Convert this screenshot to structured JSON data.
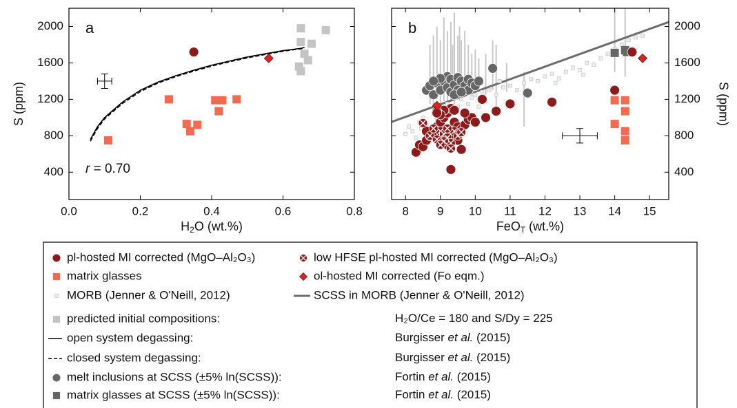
{
  "chart_data": [
    {
      "type": "scatter",
      "panel_label": "a",
      "xlabel": {
        "main": "H",
        "sub": "2",
        "rest": "O (wt.%)"
      },
      "ylabel": "S (ppm)",
      "yaxis_side": "left",
      "annotation": {
        "var": "r",
        "text": "= 0.70"
      },
      "xlim": [
        0,
        0.8
      ],
      "ylim": [
        100,
        2200
      ],
      "xticks": [
        {
          "value": 0,
          "label": "0.0"
        },
        {
          "value": 0.2,
          "label": "0.2"
        },
        {
          "value": 0.4,
          "label": "0.4"
        },
        {
          "value": 0.6,
          "label": "0.6"
        },
        {
          "value": 0.8,
          "label": "0.8"
        }
      ],
      "yticks": [
        400,
        800,
        1200,
        1600,
        2000
      ],
      "series": [
        {
          "kind": "line",
          "color": "#000000",
          "dash": false,
          "x": [
            0.06,
            0.08,
            0.1,
            0.15,
            0.2,
            0.25,
            0.3,
            0.35,
            0.4,
            0.45,
            0.5,
            0.55,
            0.6,
            0.65,
            0.66
          ],
          "y": [
            760,
            900,
            1000,
            1170,
            1300,
            1390,
            1460,
            1520,
            1575,
            1620,
            1665,
            1700,
            1735,
            1760,
            1770
          ]
        },
        {
          "kind": "line",
          "color": "#000000",
          "dash": true,
          "x": [
            0.06,
            0.08,
            0.1,
            0.15,
            0.2,
            0.25,
            0.3,
            0.35,
            0.4,
            0.45,
            0.5,
            0.55,
            0.6,
            0.65,
            0.66
          ],
          "y": [
            740,
            880,
            985,
            1155,
            1285,
            1380,
            1450,
            1510,
            1565,
            1612,
            1655,
            1692,
            1728,
            1755,
            1765
          ]
        },
        {
          "kind": "points",
          "marker": "square",
          "color": "#c4c4c4",
          "x": [
            0.65,
            0.72,
            0.68,
            0.65,
            0.66,
            0.67,
            0.645,
            0.65
          ],
          "y": [
            1980,
            1960,
            1810,
            1830,
            1700,
            1630,
            1560,
            1510
          ]
        },
        {
          "kind": "points",
          "marker": "square",
          "color": "#f26a4f",
          "x": [
            0.11,
            0.28,
            0.33,
            0.34,
            0.36,
            0.41,
            0.42,
            0.43,
            0.47
          ],
          "y": [
            750,
            1200,
            930,
            850,
            920,
            1190,
            1070,
            1190,
            1200
          ]
        },
        {
          "kind": "points",
          "marker": "circle",
          "color": "#8c1c1c",
          "x": [
            0.35
          ],
          "y": [
            1720
          ]
        },
        {
          "kind": "points",
          "marker": "diamond",
          "color": "#e32020",
          "x": [
            0.56
          ],
          "y": [
            1650
          ]
        },
        {
          "kind": "errorbar",
          "color": "#000000",
          "x": [
            0.1
          ],
          "y": [
            1400
          ],
          "xerr": [
            0.02
          ],
          "yerr": [
            80
          ]
        }
      ]
    },
    {
      "type": "scatter",
      "panel_label": "b",
      "xlabel": {
        "main": "FeO",
        "sub": "T",
        "rest": "(wt.%)"
      },
      "ylabel": "S (ppm)",
      "yaxis_side": "right",
      "xlim": [
        7.6,
        15.55
      ],
      "ylim": [
        100,
        2200
      ],
      "xticks": [
        8,
        9,
        10,
        11,
        12,
        13,
        14,
        15
      ],
      "yticks": [
        400,
        800,
        1200,
        1600,
        2000
      ],
      "series": [
        {
          "kind": "ranges",
          "color": "#c8c8c8",
          "x": [
            8.7,
            8.8,
            8.9,
            9.0,
            9.1,
            9.2,
            9.3,
            9.35,
            9.4,
            9.5,
            9.55,
            9.6,
            9.7,
            9.8,
            9.9,
            10.0,
            10.1,
            10.3,
            10.5,
            10.6,
            10.9,
            11.4,
            14.0,
            14.3
          ],
          "low": [
            1150,
            1100,
            1200,
            1150,
            1180,
            1120,
            1200,
            1250,
            1150,
            1200,
            1230,
            1180,
            1220,
            1250,
            1200,
            1260,
            1280,
            1250,
            1300,
            1050,
            1280,
            900,
            1500,
            1450
          ],
          "high": [
            1800,
            1900,
            2000,
            1850,
            2100,
            1950,
            2050,
            1800,
            2150,
            1900,
            2000,
            1850,
            1950,
            1800,
            1700,
            1750,
            1650,
            1700,
            1850,
            1800,
            1600,
            1500,
            2200,
            2200
          ]
        },
        {
          "kind": "points",
          "marker": "smallsquare",
          "color": "#c8c8c8",
          "x": [
            8.1,
            8.2,
            8.3,
            8.0,
            8.4,
            8.5,
            8.6,
            8.8,
            8.9,
            9.0,
            9.2,
            9.4,
            9.6,
            9.8,
            10.0,
            10.2,
            10.4,
            10.6,
            10.8,
            11.0,
            11.2,
            11.4,
            11.6,
            11.8,
            12.0,
            12.2,
            12.4,
            12.6,
            12.8,
            13.0,
            13.2,
            13.4,
            13.6,
            13.8,
            14.0,
            14.2,
            14.4,
            14.6,
            14.8,
            9.1,
            9.5,
            9.9,
            10.3,
            10.7,
            11.5,
            12.3,
            13.1,
            8.7,
            8.45,
            10.1
          ],
          "y": [
            900,
            850,
            780,
            820,
            950,
            1000,
            920,
            1050,
            980,
            1100,
            1150,
            1080,
            1200,
            1150,
            1250,
            1280,
            1300,
            1250,
            1330,
            1350,
            1300,
            1380,
            1420,
            1400,
            1450,
            1480,
            1430,
            1500,
            1550,
            1520,
            1600,
            1580,
            1650,
            1700,
            1750,
            1800,
            1850,
            1880,
            1900,
            1020,
            1120,
            1220,
            1180,
            1400,
            1260,
            1380,
            1470,
            870,
            880,
            1120
          ]
        },
        {
          "kind": "line",
          "color": "#6d6d6d",
          "dash": false,
          "width": 3,
          "x": [
            7.6,
            15.55
          ],
          "y": [
            952,
            2049
          ]
        },
        {
          "kind": "points",
          "marker": "circle",
          "color": "#666666",
          "x": [
            8.6,
            8.7,
            8.8,
            8.9,
            9.0,
            9.1,
            9.2,
            9.2,
            9.3,
            9.3,
            9.4,
            9.5,
            9.5,
            9.6,
            9.7,
            9.8,
            9.8,
            9.9,
            10.0,
            9.0,
            8.8,
            9.4,
            9.6,
            10.1,
            10.5,
            11.5
          ],
          "y": [
            1300,
            1350,
            1250,
            1380,
            1300,
            1400,
            1450,
            1330,
            1280,
            1420,
            1360,
            1440,
            1300,
            1400,
            1350,
            1420,
            1300,
            1380,
            1350,
            1430,
            1400,
            1250,
            1280,
            1400,
            1540,
            1270
          ]
        },
        {
          "kind": "points",
          "marker": "square",
          "color": "#666666",
          "x": [
            14.0,
            14.3,
            14.35
          ],
          "y": [
            1710,
            1740,
            1720
          ]
        },
        {
          "kind": "points",
          "marker": "circle",
          "color": "#8c1c1c",
          "x": [
            8.3,
            8.4,
            8.5,
            8.6,
            8.7,
            8.8,
            8.9,
            9.0,
            9.1,
            9.2,
            9.3,
            9.1,
            9.0,
            8.9,
            9.4,
            9.5,
            9.6,
            9.7,
            9.8,
            9.9,
            10.0,
            9.3,
            9.5,
            9.6,
            9.2,
            9.3,
            8.9,
            9.4,
            10.2,
            10.6,
            11.0,
            12.2,
            14.0,
            14.5,
            10.3,
            9.7,
            8.6
          ],
          "y": [
            620,
            700,
            680,
            750,
            800,
            850,
            900,
            950,
            1000,
            1050,
            1100,
            1080,
            1030,
            1070,
            950,
            900,
            870,
            920,
            980,
            1000,
            950,
            800,
            750,
            650,
            700,
            430,
            1050,
            1080,
            1200,
            1070,
            1150,
            1170,
            1300,
            1720,
            1000,
            1050,
            850
          ]
        },
        {
          "kind": "points",
          "marker": "xcircle",
          "color": "#8c1c1c",
          "x": [
            8.5,
            8.7,
            8.9,
            9.0,
            9.1,
            9.2,
            9.3,
            9.4,
            9.3,
            9.2,
            8.8,
            9.5,
            9.1,
            9.0,
            9.6
          ],
          "y": [
            940,
            800,
            760,
            850,
            820,
            780,
            720,
            850,
            660,
            880,
            880,
            800,
            740,
            700,
            840
          ]
        },
        {
          "kind": "points",
          "marker": "square",
          "color": "#f26a4f",
          "x": [
            14.0,
            14.3,
            14.3,
            14.0,
            14.3,
            14.3
          ],
          "y": [
            1190,
            1190,
            1070,
            930,
            850,
            750
          ]
        },
        {
          "kind": "points",
          "marker": "diamond",
          "color": "#e32020",
          "x": [
            8.9,
            14.8
          ],
          "y": [
            1130,
            1650
          ]
        },
        {
          "kind": "errorbar",
          "color": "#000000",
          "x": [
            13.0
          ],
          "y": [
            800
          ],
          "xerr": [
            0.5
          ],
          "yerr": [
            80
          ]
        }
      ]
    }
  ],
  "legend": [
    {
      "marker": "circle",
      "color": "#8c1c1c",
      "label": "pl-hosted MI corrected (MgO–Al₂O₃)"
    },
    {
      "marker": "xcircle",
      "color": "#8c1c1c",
      "label": "low HFSE pl-hosted MI corrected (MgO–Al₂O₃)"
    },
    {
      "marker": "square",
      "color": "#f26a4f",
      "label": "matrix glasses"
    },
    {
      "marker": "diamond",
      "color": "#e32020",
      "label": "ol-hosted MI corrected (Fo eqm.)"
    },
    {
      "marker": "smallsquare",
      "color": "#c8c8c8",
      "label": "MORB (Jenner & O'Neill, 2012)"
    },
    {
      "marker": "line",
      "color": "#6d6d6d",
      "label": "SCSS in MORB (Jenner & O'Neill, 2012)"
    },
    {
      "marker": "square",
      "color": "#c4c4c4",
      "label": "predicted initial compositions:",
      "source": {
        "text": "H₂O/Ce = 180 and S/Dy = 225"
      }
    },
    {
      "marker": "solid",
      "color": "#000000",
      "label": "open system degassing:",
      "source": {
        "author": "Burgisser",
        "etal": "et al.",
        "year": "(2015)"
      }
    },
    {
      "marker": "dashed",
      "color": "#000000",
      "label": "closed system degassing:",
      "source": {
        "author": "Burgisser",
        "etal": "et al.",
        "year": "(2015)"
      }
    },
    {
      "marker": "circle",
      "color": "#666666",
      "label": "melt inclusions at SCSS (±5% ln(SCSS)):",
      "source": {
        "author": "Fortin",
        "etal": "et al.",
        "year": "(2015)"
      }
    },
    {
      "marker": "square",
      "color": "#666666",
      "label": "matrix glasses at SCSS (±5% ln(SCSS)):",
      "source": {
        "author": "Fortin",
        "etal": "et al.",
        "year": "(2015)"
      }
    }
  ]
}
